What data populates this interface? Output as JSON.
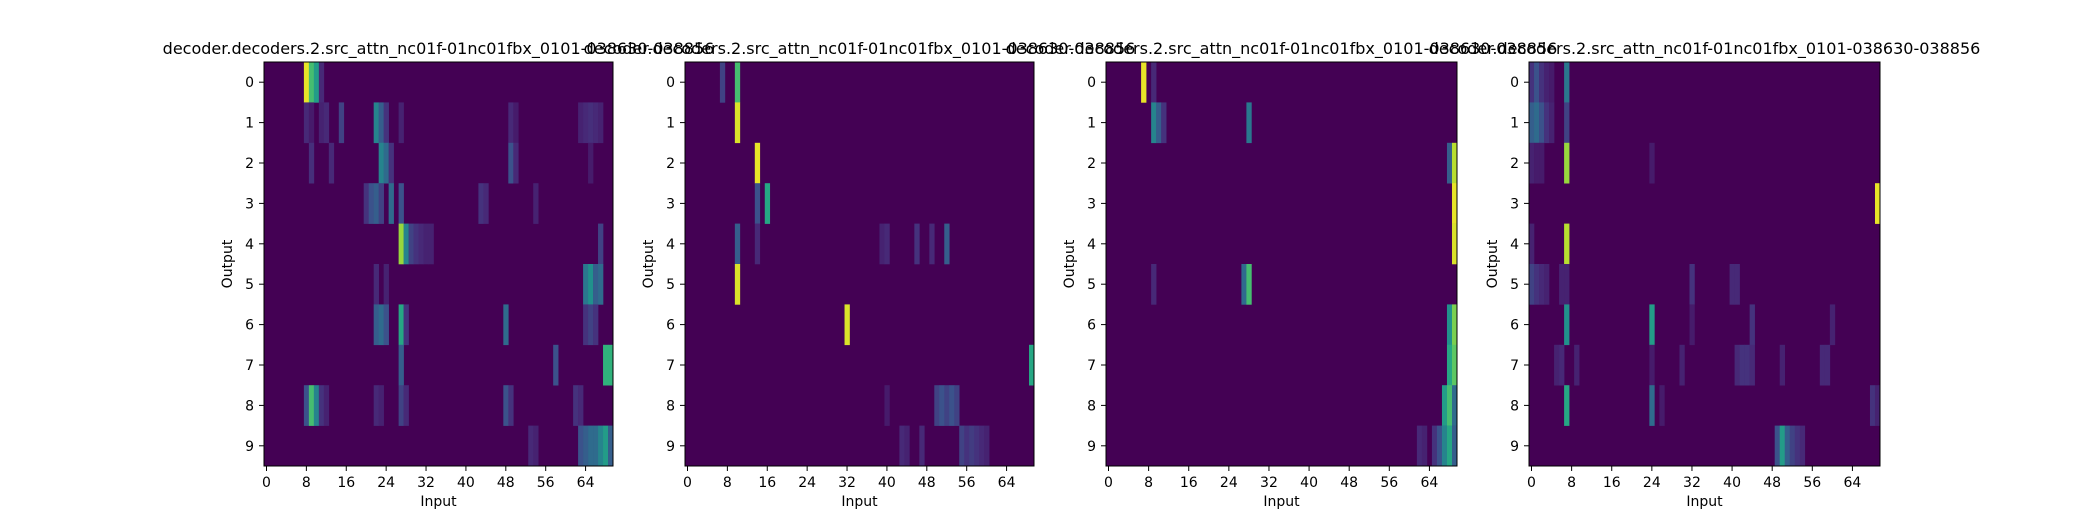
{
  "chart_data": [
    {
      "type": "heatmap",
      "title": "decoder.decoders.2.src_attn_nc01f-01nc01fbx_0101-038630-038856",
      "xlabel": "Input",
      "ylabel": "Output",
      "xlim": [
        0,
        70
      ],
      "ylim": [
        0,
        10
      ],
      "xticks": [
        0,
        8,
        16,
        24,
        32,
        40,
        48,
        56,
        64
      ],
      "yticks": [
        0,
        1,
        2,
        3,
        4,
        5,
        6,
        7,
        8,
        9
      ],
      "colormap": "viridis",
      "background_value": 0,
      "rows": [
        {
          "row": 0,
          "cells": [
            [
              8,
              0.97
            ],
            [
              9,
              0.7
            ],
            [
              10,
              0.55
            ],
            [
              11,
              0.12
            ]
          ]
        },
        {
          "row": 1,
          "cells": [
            [
              8,
              0.12
            ],
            [
              9,
              0.08
            ],
            [
              11,
              0.1
            ],
            [
              12,
              0.12
            ],
            [
              15,
              0.2
            ],
            [
              22,
              0.45
            ],
            [
              23,
              0.3
            ],
            [
              24,
              0.15
            ],
            [
              27,
              0.1
            ],
            [
              49,
              0.12
            ],
            [
              50,
              0.08
            ],
            [
              63,
              0.1
            ],
            [
              64,
              0.12
            ],
            [
              65,
              0.14
            ],
            [
              66,
              0.12
            ],
            [
              67,
              0.1
            ]
          ]
        },
        {
          "row": 2,
          "cells": [
            [
              9,
              0.14
            ],
            [
              13,
              0.12
            ],
            [
              23,
              0.45
            ],
            [
              24,
              0.35
            ],
            [
              25,
              0.15
            ],
            [
              49,
              0.25
            ],
            [
              50,
              0.12
            ],
            [
              65,
              0.08
            ]
          ]
        },
        {
          "row": 3,
          "cells": [
            [
              20,
              0.15
            ],
            [
              21,
              0.25
            ],
            [
              22,
              0.3
            ],
            [
              23,
              0.2
            ],
            [
              25,
              0.35
            ],
            [
              27,
              0.25
            ],
            [
              43,
              0.15
            ],
            [
              44,
              0.12
            ],
            [
              54,
              0.1
            ]
          ]
        },
        {
          "row": 4,
          "cells": [
            [
              27,
              0.85
            ],
            [
              28,
              0.45
            ],
            [
              29,
              0.2
            ],
            [
              30,
              0.15
            ],
            [
              31,
              0.12
            ],
            [
              32,
              0.1
            ],
            [
              33,
              0.1
            ],
            [
              67,
              0.2
            ]
          ]
        },
        {
          "row": 5,
          "cells": [
            [
              22,
              0.12
            ],
            [
              24,
              0.1
            ],
            [
              64,
              0.4
            ],
            [
              65,
              0.5
            ],
            [
              66,
              0.3
            ],
            [
              67,
              0.35
            ]
          ]
        },
        {
          "row": 6,
          "cells": [
            [
              22,
              0.3
            ],
            [
              23,
              0.35
            ],
            [
              24,
              0.25
            ],
            [
              27,
              0.6
            ],
            [
              28,
              0.15
            ],
            [
              48,
              0.35
            ],
            [
              64,
              0.15
            ],
            [
              65,
              0.2
            ],
            [
              66,
              0.15
            ]
          ]
        },
        {
          "row": 7,
          "cells": [
            [
              27,
              0.3
            ],
            [
              58,
              0.25
            ],
            [
              68,
              0.65
            ],
            [
              69,
              0.65
            ]
          ]
        },
        {
          "row": 8,
          "cells": [
            [
              8,
              0.25
            ],
            [
              9,
              0.7
            ],
            [
              10,
              0.45
            ],
            [
              11,
              0.15
            ],
            [
              12,
              0.1
            ],
            [
              22,
              0.12
            ],
            [
              23,
              0.1
            ],
            [
              27,
              0.2
            ],
            [
              28,
              0.12
            ],
            [
              48,
              0.25
            ],
            [
              49,
              0.15
            ],
            [
              62,
              0.15
            ],
            [
              63,
              0.12
            ]
          ]
        },
        {
          "row": 9,
          "cells": [
            [
              53,
              0.12
            ],
            [
              54,
              0.1
            ],
            [
              63,
              0.25
            ],
            [
              64,
              0.3
            ],
            [
              65,
              0.35
            ],
            [
              66,
              0.35
            ],
            [
              67,
              0.45
            ],
            [
              68,
              0.55
            ],
            [
              69,
              0.3
            ]
          ]
        }
      ]
    },
    {
      "type": "heatmap",
      "title": "decoder.decoders.2.src_attn_nc01f-01nc01fbx_0101-038630-038856",
      "xlabel": "Input",
      "ylabel": "Output",
      "xlim": [
        0,
        70
      ],
      "ylim": [
        0,
        10
      ],
      "xticks": [
        0,
        8,
        16,
        24,
        32,
        40,
        48,
        56,
        64
      ],
      "yticks": [
        0,
        1,
        2,
        3,
        4,
        5,
        6,
        7,
        8,
        9
      ],
      "colormap": "viridis",
      "background_value": 0,
      "rows": [
        {
          "row": 0,
          "cells": [
            [
              7,
              0.2
            ],
            [
              10,
              0.7
            ]
          ]
        },
        {
          "row": 1,
          "cells": [
            [
              10,
              0.95
            ]
          ]
        },
        {
          "row": 2,
          "cells": [
            [
              14,
              0.97
            ]
          ]
        },
        {
          "row": 3,
          "cells": [
            [
              14,
              0.25
            ],
            [
              16,
              0.6
            ]
          ]
        },
        {
          "row": 4,
          "cells": [
            [
              10,
              0.3
            ],
            [
              14,
              0.12
            ],
            [
              39,
              0.1
            ],
            [
              40,
              0.12
            ],
            [
              46,
              0.15
            ],
            [
              49,
              0.12
            ],
            [
              52,
              0.3
            ]
          ]
        },
        {
          "row": 5,
          "cells": [
            [
              10,
              0.95
            ]
          ]
        },
        {
          "row": 6,
          "cells": [
            [
              32,
              0.95
            ]
          ]
        },
        {
          "row": 7,
          "cells": [
            [
              69,
              0.6
            ]
          ]
        },
        {
          "row": 8,
          "cells": [
            [
              40,
              0.08
            ],
            [
              50,
              0.2
            ],
            [
              51,
              0.25
            ],
            [
              52,
              0.2
            ],
            [
              53,
              0.25
            ],
            [
              54,
              0.2
            ]
          ]
        },
        {
          "row": 9,
          "cells": [
            [
              43,
              0.12
            ],
            [
              44,
              0.1
            ],
            [
              47,
              0.12
            ],
            [
              55,
              0.2
            ],
            [
              56,
              0.15
            ],
            [
              57,
              0.18
            ],
            [
              58,
              0.15
            ],
            [
              59,
              0.12
            ],
            [
              60,
              0.1
            ]
          ]
        }
      ]
    },
    {
      "type": "heatmap",
      "title": "decoder.decoders.2.src_attn_nc01f-01nc01fbx_0101-038630-038856",
      "xlabel": "Input",
      "ylabel": "Output",
      "xlim": [
        0,
        70
      ],
      "ylim": [
        0,
        10
      ],
      "xticks": [
        0,
        8,
        16,
        24,
        32,
        40,
        48,
        56,
        64
      ],
      "yticks": [
        0,
        1,
        2,
        3,
        4,
        5,
        6,
        7,
        8,
        9
      ],
      "colormap": "viridis",
      "background_value": 0,
      "rows": [
        {
          "row": 0,
          "cells": [
            [
              7,
              0.97
            ],
            [
              9,
              0.12
            ]
          ]
        },
        {
          "row": 1,
          "cells": [
            [
              9,
              0.45
            ],
            [
              10,
              0.3
            ],
            [
              11,
              0.15
            ],
            [
              28,
              0.4
            ]
          ]
        },
        {
          "row": 2,
          "cells": [
            [
              68,
              0.3
            ],
            [
              69,
              0.9
            ]
          ]
        },
        {
          "row": 3,
          "cells": [
            [
              69,
              0.97
            ]
          ]
        },
        {
          "row": 4,
          "cells": [
            [
              69,
              0.95
            ]
          ]
        },
        {
          "row": 5,
          "cells": [
            [
              9,
              0.12
            ],
            [
              27,
              0.35
            ],
            [
              28,
              0.7
            ]
          ]
        },
        {
          "row": 6,
          "cells": [
            [
              68,
              0.5
            ],
            [
              69,
              0.8
            ]
          ]
        },
        {
          "row": 7,
          "cells": [
            [
              68,
              0.6
            ],
            [
              69,
              0.75
            ]
          ]
        },
        {
          "row": 8,
          "cells": [
            [
              67,
              0.55
            ],
            [
              68,
              0.7
            ],
            [
              69,
              0.35
            ]
          ]
        },
        {
          "row": 9,
          "cells": [
            [
              62,
              0.12
            ],
            [
              63,
              0.1
            ],
            [
              65,
              0.15
            ],
            [
              66,
              0.25
            ],
            [
              67,
              0.45
            ],
            [
              68,
              0.6
            ],
            [
              69,
              0.3
            ]
          ]
        }
      ]
    },
    {
      "type": "heatmap",
      "title": "decoder.decoders.2.src_attn_nc01f-01nc01fbx_0101-038630-038856",
      "xlabel": "Input",
      "ylabel": "Output",
      "xlim": [
        0,
        70
      ],
      "ylim": [
        0,
        10
      ],
      "xticks": [
        0,
        8,
        16,
        24,
        32,
        40,
        48,
        56,
        64
      ],
      "yticks": [
        0,
        1,
        2,
        3,
        4,
        5,
        6,
        7,
        8,
        9
      ],
      "colormap": "viridis",
      "background_value": 0,
      "rows": [
        {
          "row": 0,
          "cells": [
            [
              0,
              0.15
            ],
            [
              1,
              0.25
            ],
            [
              2,
              0.15
            ],
            [
              3,
              0.1
            ],
            [
              4,
              0.08
            ],
            [
              7,
              0.4
            ]
          ]
        },
        {
          "row": 1,
          "cells": [
            [
              0,
              0.3
            ],
            [
              1,
              0.35
            ],
            [
              2,
              0.25
            ],
            [
              3,
              0.15
            ],
            [
              4,
              0.1
            ],
            [
              7,
              0.2
            ]
          ]
        },
        {
          "row": 2,
          "cells": [
            [
              0,
              0.1
            ],
            [
              1,
              0.08
            ],
            [
              2,
              0.08
            ],
            [
              7,
              0.85
            ],
            [
              24,
              0.08
            ]
          ]
        },
        {
          "row": 3,
          "cells": [
            [
              69,
              0.97
            ]
          ]
        },
        {
          "row": 4,
          "cells": [
            [
              0,
              0.1
            ],
            [
              7,
              0.9
            ]
          ]
        },
        {
          "row": 5,
          "cells": [
            [
              0,
              0.2
            ],
            [
              1,
              0.15
            ],
            [
              2,
              0.12
            ],
            [
              3,
              0.1
            ],
            [
              6,
              0.1
            ],
            [
              7,
              0.1
            ],
            [
              32,
              0.15
            ],
            [
              40,
              0.12
            ],
            [
              41,
              0.12
            ]
          ]
        },
        {
          "row": 6,
          "cells": [
            [
              7,
              0.5
            ],
            [
              24,
              0.55
            ],
            [
              32,
              0.08
            ],
            [
              44,
              0.15
            ],
            [
              60,
              0.1
            ]
          ]
        },
        {
          "row": 7,
          "cells": [
            [
              5,
              0.1
            ],
            [
              6,
              0.12
            ],
            [
              9,
              0.1
            ],
            [
              24,
              0.08
            ],
            [
              30,
              0.1
            ],
            [
              41,
              0.12
            ],
            [
              42,
              0.15
            ],
            [
              43,
              0.15
            ],
            [
              44,
              0.12
            ],
            [
              50,
              0.1
            ],
            [
              58,
              0.12
            ],
            [
              59,
              0.12
            ]
          ]
        },
        {
          "row": 8,
          "cells": [
            [
              7,
              0.6
            ],
            [
              24,
              0.35
            ],
            [
              26,
              0.08
            ],
            [
              68,
              0.15
            ],
            [
              69,
              0.1
            ]
          ]
        },
        {
          "row": 9,
          "cells": [
            [
              49,
              0.25
            ],
            [
              50,
              0.55
            ],
            [
              51,
              0.3
            ],
            [
              52,
              0.2
            ],
            [
              53,
              0.15
            ],
            [
              54,
              0.12
            ]
          ]
        }
      ]
    }
  ]
}
